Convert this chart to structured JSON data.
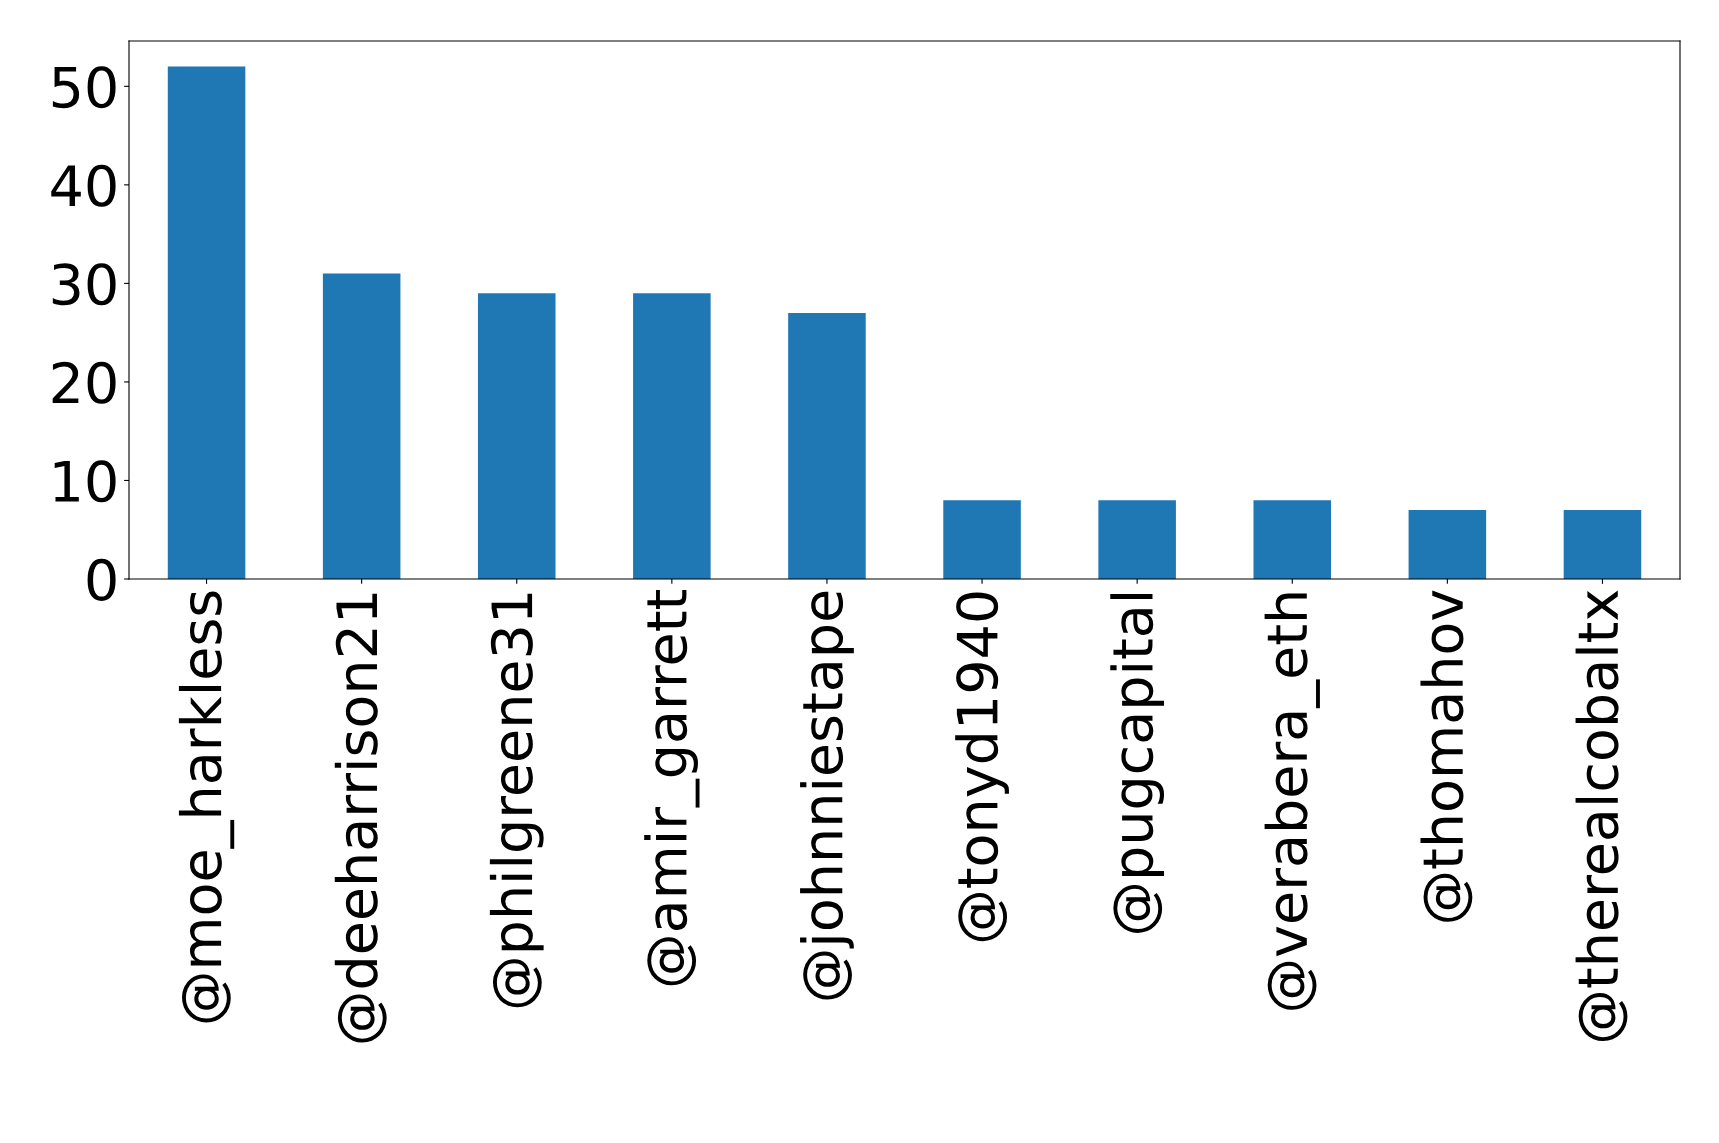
{
  "chart_data": {
    "type": "bar",
    "categories": [
      "@moe_harkless",
      "@deeharrison21",
      "@philgreene31",
      "@amir_garrett",
      "@johnniestape",
      "@tonyd1940",
      "@pugcapital",
      "@verabera_eth",
      "@thomahov",
      "@therealcobaltx"
    ],
    "values": [
      52,
      31,
      29,
      29,
      27,
      8,
      8,
      8,
      7,
      7
    ],
    "color": "#1f77b4",
    "ylim": [
      0,
      54.6
    ],
    "yticks": [
      0,
      10,
      20,
      30,
      40,
      50
    ],
    "grid": false,
    "legend": false
  }
}
